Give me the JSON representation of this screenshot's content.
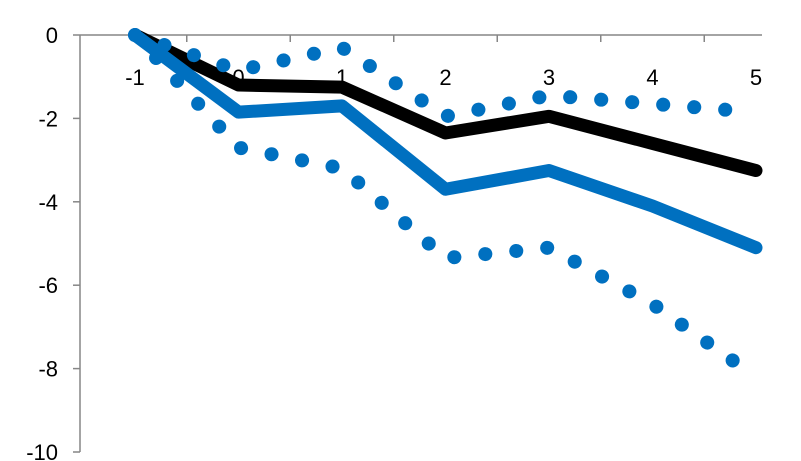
{
  "chart_data": {
    "type": "line",
    "title": "",
    "xlabel": "",
    "ylabel": "",
    "x_categories": [
      "-1",
      "0",
      "1",
      "2",
      "3",
      "4",
      "5"
    ],
    "ylim": [
      -10,
      0
    ],
    "y_ticks": [
      0,
      -2,
      -4,
      -6,
      -8,
      -10
    ],
    "y_tick_labels": [
      "0",
      "-2",
      "-4",
      "-6",
      "-8",
      "-10"
    ],
    "grid": false,
    "legend": "none",
    "series": [
      {
        "style": "solid",
        "color": "#000000",
        "values": [
          0.0,
          -1.2,
          -1.25,
          -2.35,
          -1.95,
          -2.6,
          -3.25
        ]
      },
      {
        "style": "solid",
        "color": "#0070C0",
        "values": [
          0.0,
          -1.85,
          -1.7,
          -3.7,
          -3.25,
          -4.1,
          -5.1
        ]
      },
      {
        "style": "dotted",
        "color": "#0070C0",
        "values": [
          0.0,
          -0.85,
          -0.3,
          -1.95,
          -1.45,
          -1.65,
          -1.85
        ]
      },
      {
        "style": "dotted",
        "color": "#0070C0",
        "values": [
          0.0,
          -2.7,
          -3.2,
          -5.35,
          -5.1,
          -6.45,
          -8.2
        ]
      }
    ]
  }
}
